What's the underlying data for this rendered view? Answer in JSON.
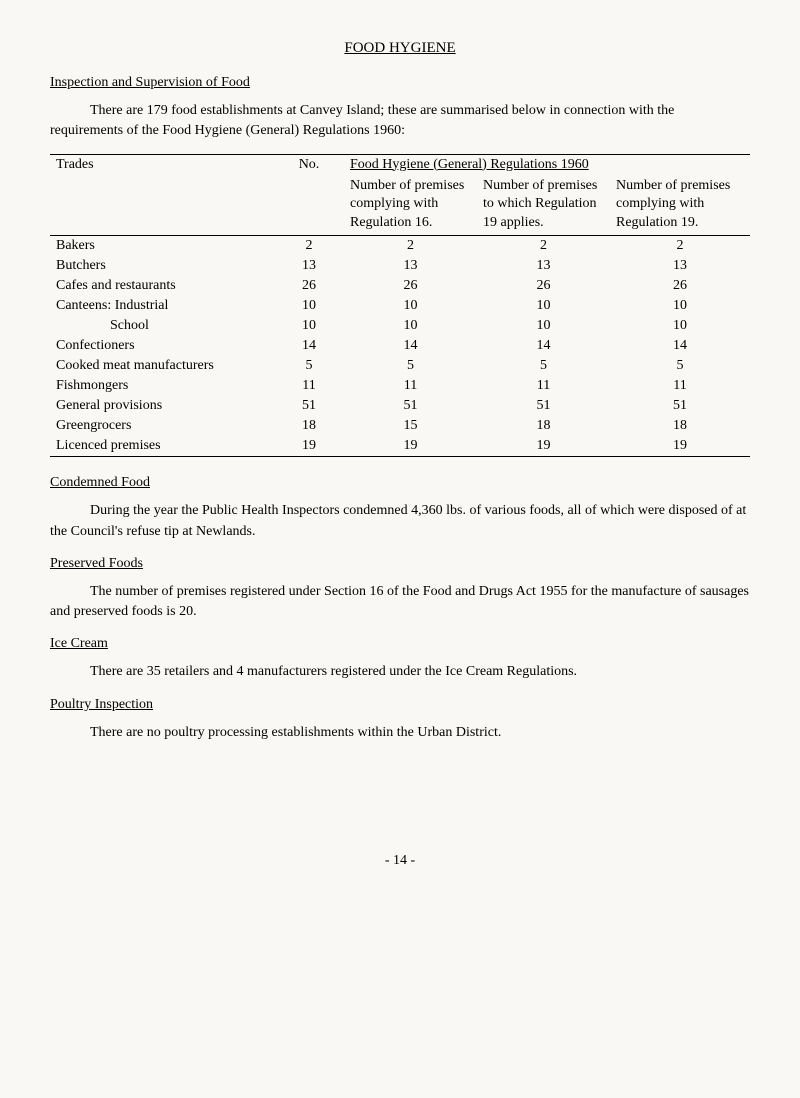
{
  "title": "FOOD HYGIENE",
  "sections": {
    "inspection": {
      "heading": "Inspection and Supervision of Food",
      "para": "There are 179 food establishments at Canvey Island; these are summarised below in connection with the requirements of the Food Hygiene (General) Regulations 1960:"
    },
    "condemned": {
      "heading": "Condemned Food",
      "para": "During the year the Public Health Inspectors condemned 4,360 lbs. of various foods, all of which were disposed of at the Council's refuse tip at Newlands."
    },
    "preserved": {
      "heading": "Preserved Foods",
      "para": "The number of premises registered under Section 16 of the Food and Drugs Act 1955 for the manufacture of sausages and preserved foods is 20."
    },
    "icecream": {
      "heading": "Ice Cream",
      "para": "There are 35 retailers and 4 manufacturers registered under the Ice Cream Regulations."
    },
    "poultry": {
      "heading": "Poultry Inspection",
      "para": "There are no poultry processing establishments within the Urban District."
    }
  },
  "table": {
    "col_trades": "Trades",
    "col_no": "No.",
    "super_header": "Food Hygiene (General) Regulations 1960",
    "sub1": "Number of premises complying with Regulation 16.",
    "sub2": "Number of premises to which Regulation 19 applies.",
    "sub3": "Number of premises complying with Regulation 19.",
    "rows": [
      {
        "trade": "Bakers",
        "no": "2",
        "c1": "2",
        "c2": "2",
        "c3": "2",
        "indent": false
      },
      {
        "trade": "Butchers",
        "no": "13",
        "c1": "13",
        "c2": "13",
        "c3": "13",
        "indent": false
      },
      {
        "trade": "Cafes and restaurants",
        "no": "26",
        "c1": "26",
        "c2": "26",
        "c3": "26",
        "indent": false
      },
      {
        "trade": "Canteens: Industrial",
        "no": "10",
        "c1": "10",
        "c2": "10",
        "c3": "10",
        "indent": false
      },
      {
        "trade": "School",
        "no": "10",
        "c1": "10",
        "c2": "10",
        "c3": "10",
        "indent": true
      },
      {
        "trade": "Confectioners",
        "no": "14",
        "c1": "14",
        "c2": "14",
        "c3": "14",
        "indent": false
      },
      {
        "trade": "Cooked meat manufacturers",
        "no": "5",
        "c1": "5",
        "c2": "5",
        "c3": "5",
        "indent": false
      },
      {
        "trade": "Fishmongers",
        "no": "11",
        "c1": "11",
        "c2": "11",
        "c3": "11",
        "indent": false
      },
      {
        "trade": "General provisions",
        "no": "51",
        "c1": "51",
        "c2": "51",
        "c3": "51",
        "indent": false
      },
      {
        "trade": "Greengrocers",
        "no": "18",
        "c1": "15",
        "c2": "18",
        "c3": "18",
        "indent": false
      },
      {
        "trade": "Licenced premises",
        "no": "19",
        "c1": "19",
        "c2": "19",
        "c3": "19",
        "indent": false
      }
    ]
  },
  "page_number": "-  14  -"
}
